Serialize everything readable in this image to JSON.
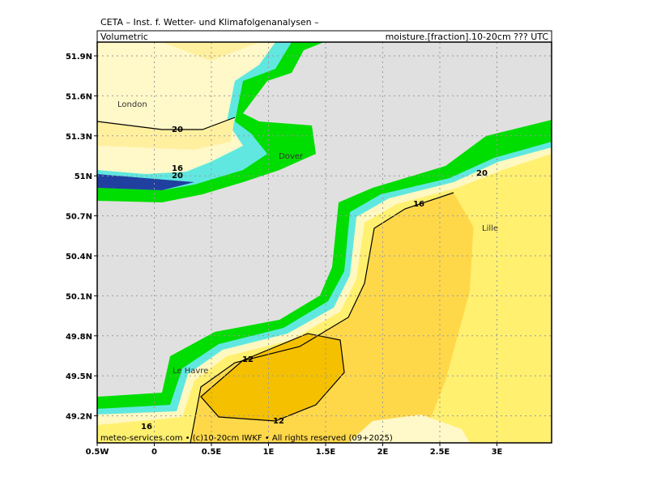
{
  "header": {
    "title": "CETA – Inst. f. Wetter- und Klimafolgenanalysen –",
    "variable": "Volumetric",
    "field": "moisture.[fraction].10-20cm ??? UTC"
  },
  "axes": {
    "lat_labels": [
      "51.9N",
      "51.6N",
      "51.3N",
      "51N",
      "50.7N",
      "50.4N",
      "50.1N",
      "49.8N",
      "49.5N",
      "49.2N"
    ],
    "lon_labels": [
      "0.5W",
      "0",
      "0.5E",
      "1E",
      "1.5E",
      "2E",
      "2.5E",
      "3E"
    ]
  },
  "contour_labels": [
    "20",
    "16",
    "20",
    "16",
    "20",
    "12",
    "12",
    "16"
  ],
  "places": [
    "London",
    "Dover",
    "Le Havre",
    "Lille"
  ],
  "footer": "meteo-services.com • (c)10-20cm IWKF • All rights reserved (09+2025)"
}
